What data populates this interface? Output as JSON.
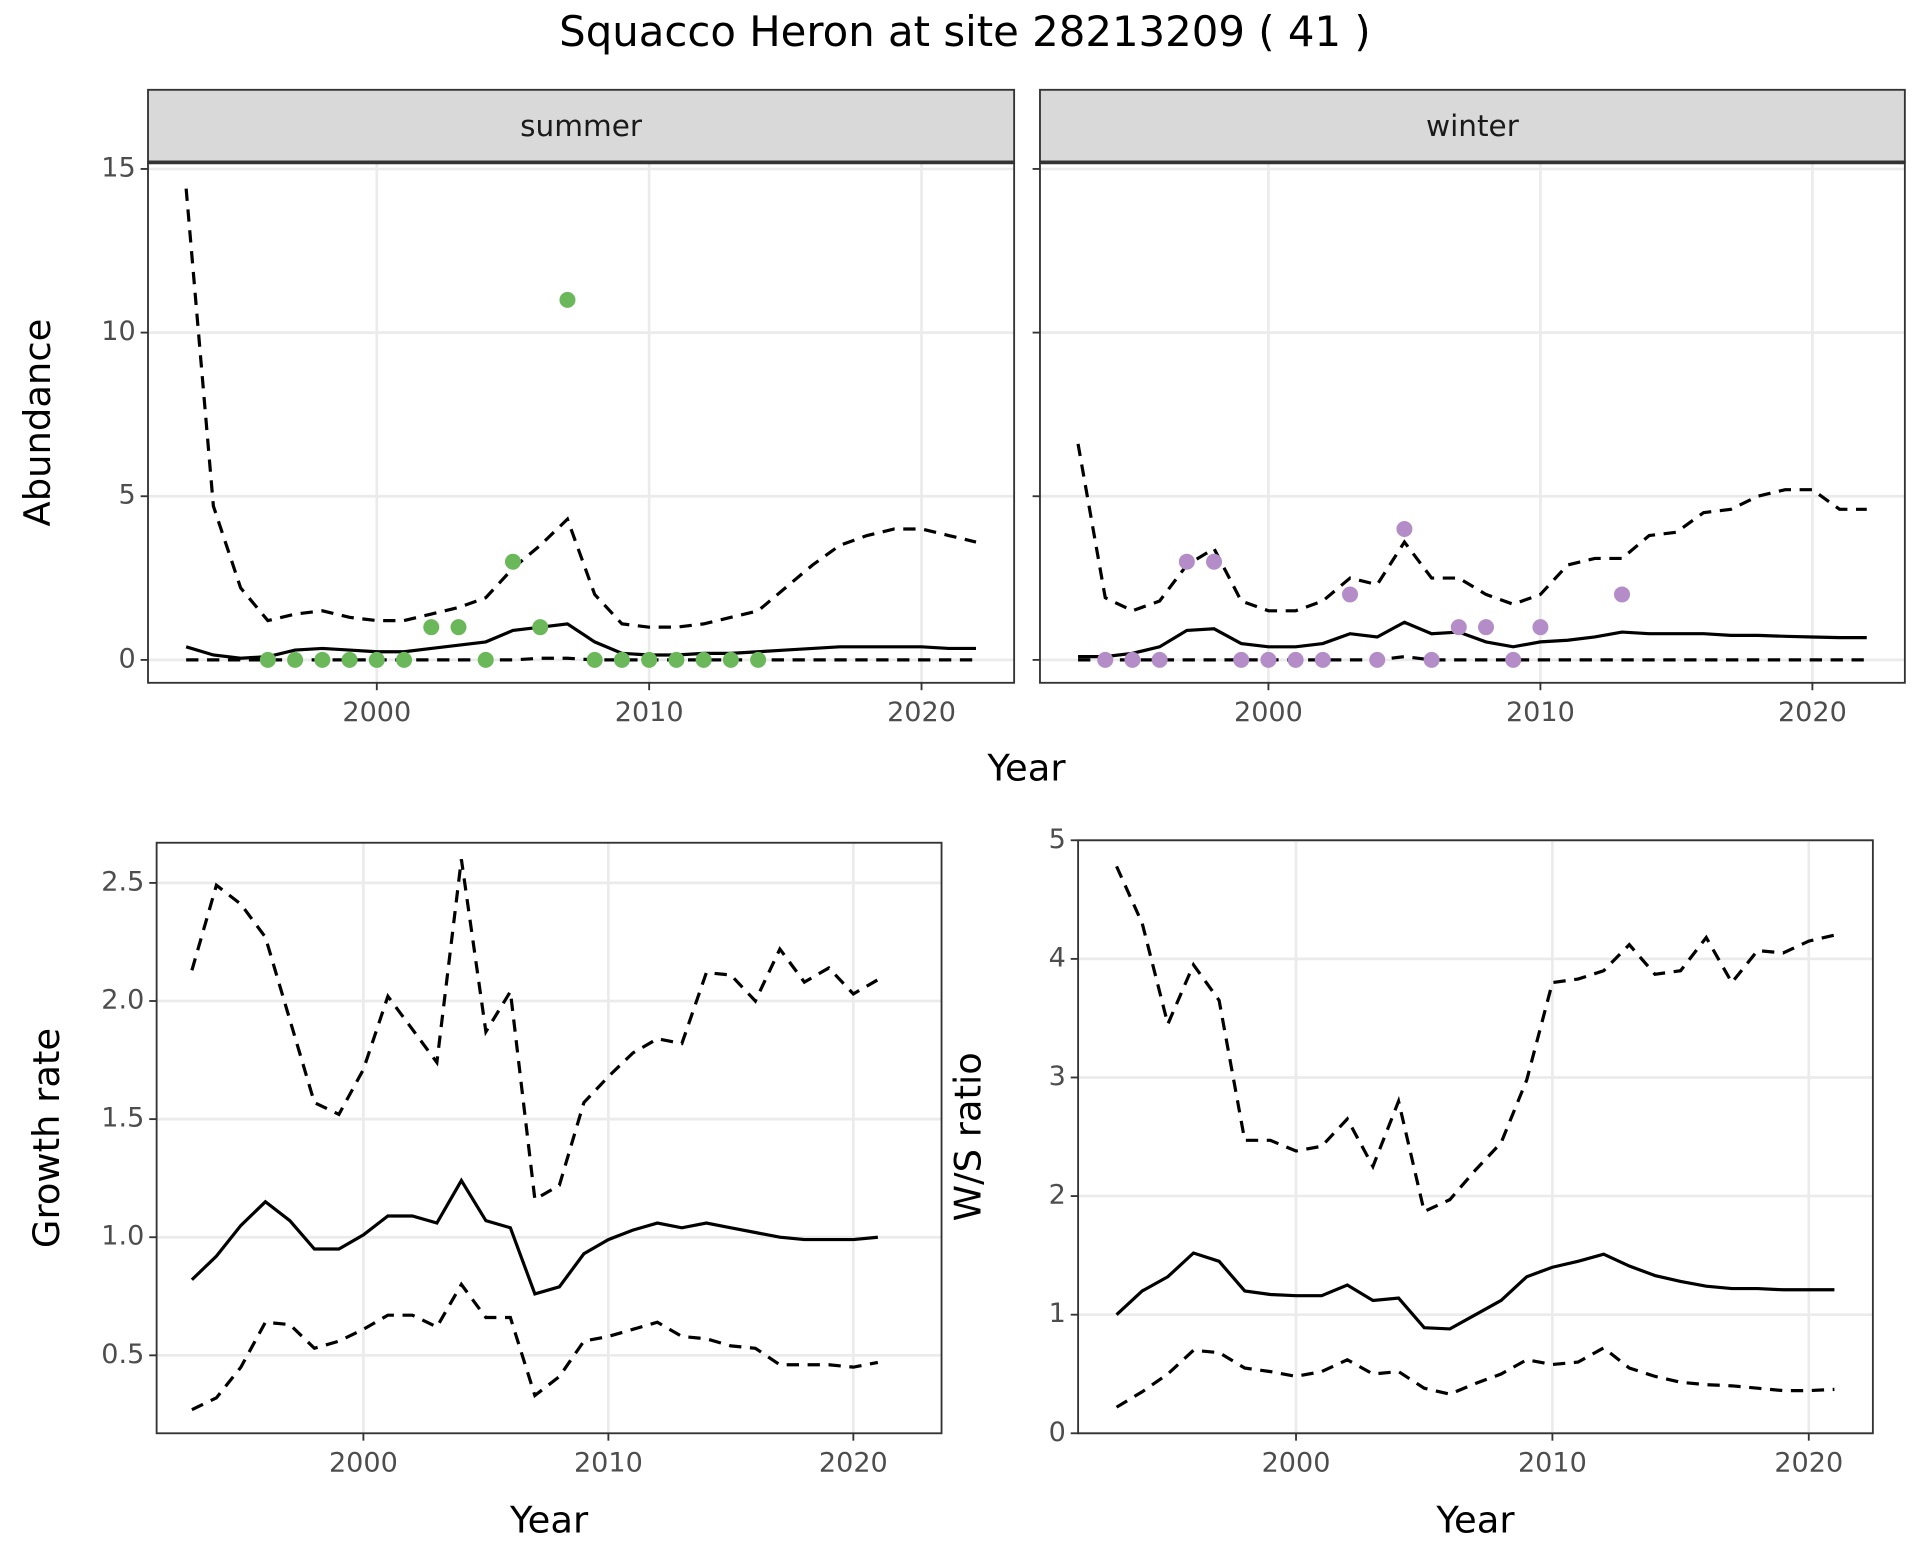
{
  "title": "Squacco Heron at site 28213209 ( 41 )",
  "xlabel": "Year",
  "chart_data": [
    {
      "type": "line",
      "strip": "summer",
      "ylabel": "Abundance",
      "xlim": [
        1991.6,
        2023.4
      ],
      "ylim": [
        -0.7,
        15.2
      ],
      "xticks": [
        2000,
        2010,
        2020
      ],
      "yticks": [
        0,
        5,
        10,
        15
      ],
      "grid": true,
      "x": [
        1993,
        1994,
        1995,
        1996,
        1997,
        1998,
        1999,
        2000,
        2001,
        2002,
        2003,
        2004,
        2005,
        2006,
        2007,
        2008,
        2009,
        2010,
        2011,
        2012,
        2013,
        2014,
        2015,
        2016,
        2017,
        2018,
        2019,
        2020,
        2021,
        2022
      ],
      "series": [
        {
          "color": "#000000",
          "dash": true,
          "values": [
            14.4,
            4.7,
            2.2,
            1.2,
            1.4,
            1.5,
            1.3,
            1.2,
            1.2,
            1.4,
            1.6,
            1.9,
            2.8,
            3.5,
            4.3,
            2.0,
            1.1,
            1.0,
            1.0,
            1.1,
            1.3,
            1.5,
            2.2,
            2.9,
            3.5,
            3.8,
            4.0,
            4.0,
            3.8,
            3.6
          ]
        },
        {
          "color": "#000000",
          "dash": false,
          "values": [
            0.4,
            0.15,
            0.05,
            0.1,
            0.3,
            0.35,
            0.3,
            0.25,
            0.25,
            0.35,
            0.45,
            0.55,
            0.9,
            1.0,
            1.1,
            0.55,
            0.2,
            0.15,
            0.15,
            0.2,
            0.2,
            0.25,
            0.3,
            0.35,
            0.4,
            0.4,
            0.4,
            0.4,
            0.35,
            0.35
          ]
        },
        {
          "color": "#000000",
          "dash": true,
          "values": [
            0,
            0,
            0,
            0,
            0,
            0,
            0,
            0,
            0,
            0,
            0,
            0,
            0,
            0.05,
            0.05,
            0,
            0,
            0,
            0,
            0,
            0,
            0,
            0,
            0,
            0,
            0,
            0,
            0,
            0,
            0
          ]
        }
      ],
      "points": {
        "color": "#6ab85a",
        "x": [
          1996,
          1997,
          1998,
          1999,
          2000,
          2001,
          2002,
          2003,
          2004,
          2005,
          2006,
          2007,
          2008,
          2009,
          2010,
          2011,
          2012,
          2013,
          2014
        ],
        "values": [
          0,
          0,
          0,
          0,
          0,
          0,
          1,
          1,
          0,
          3,
          1,
          11,
          0,
          0,
          0,
          0,
          0,
          0,
          0
        ]
      }
    },
    {
      "type": "line",
      "strip": "winter",
      "ytick_labels": false,
      "xlim": [
        1991.6,
        2023.4
      ],
      "ylim": [
        -0.7,
        15.2
      ],
      "xticks": [
        2000,
        2010,
        2020
      ],
      "yticks": [
        0,
        5,
        10,
        15
      ],
      "grid": true,
      "x": [
        1993,
        1994,
        1995,
        1996,
        1997,
        1998,
        1999,
        2000,
        2001,
        2002,
        2003,
        2004,
        2005,
        2006,
        2007,
        2008,
        2009,
        2010,
        2011,
        2012,
        2013,
        2014,
        2015,
        2016,
        2017,
        2018,
        2019,
        2020,
        2021,
        2022
      ],
      "series": [
        {
          "color": "#000000",
          "dash": true,
          "values": [
            6.6,
            1.9,
            1.5,
            1.8,
            2.9,
            3.4,
            1.8,
            1.5,
            1.5,
            1.8,
            2.5,
            2.3,
            3.6,
            2.5,
            2.5,
            2.0,
            1.7,
            2.0,
            2.9,
            3.1,
            3.1,
            3.8,
            3.9,
            4.5,
            4.6,
            5.0,
            5.2,
            5.2,
            4.6,
            4.6
          ]
        },
        {
          "color": "#000000",
          "dash": false,
          "values": [
            0.1,
            0.1,
            0.2,
            0.4,
            0.9,
            0.95,
            0.5,
            0.4,
            0.4,
            0.5,
            0.8,
            0.7,
            1.15,
            0.8,
            0.85,
            0.55,
            0.4,
            0.55,
            0.6,
            0.7,
            0.85,
            0.8,
            0.8,
            0.8,
            0.75,
            0.75,
            0.72,
            0.7,
            0.68,
            0.68
          ]
        },
        {
          "color": "#000000",
          "dash": true,
          "values": [
            0,
            0,
            0,
            0,
            0,
            0,
            0,
            0,
            0,
            0,
            0,
            0,
            0.1,
            0,
            0,
            0,
            0,
            0,
            0,
            0,
            0,
            0,
            0,
            0,
            0,
            0,
            0,
            0,
            0,
            0
          ]
        }
      ],
      "points": {
        "color": "#b48cc8",
        "x": [
          1994,
          1995,
          1996,
          1997,
          1998,
          1999,
          2000,
          2001,
          2002,
          2003,
          2004,
          2005,
          2006,
          2007,
          2008,
          2009,
          2010,
          2013
        ],
        "values": [
          0,
          0,
          0,
          3,
          3,
          0,
          0,
          0,
          0,
          2,
          0,
          4,
          0,
          1,
          1,
          0,
          1,
          2
        ]
      }
    },
    {
      "type": "line",
      "xlabel": "Year",
      "ylabel": "Growth rate",
      "xlim": [
        1991.56,
        2023.6
      ],
      "ylim": [
        0.17,
        2.67
      ],
      "xticks": [
        2000,
        2010,
        2020
      ],
      "yticks": [
        0.5,
        {
          "value": 1,
          "label": "1.0"
        },
        1.5,
        {
          "value": 2,
          "label": "2.0"
        },
        2.5
      ],
      "grid": true,
      "x": [
        1993,
        1994,
        1995,
        1996,
        1997,
        1998,
        1999,
        2000,
        2001,
        2002,
        2003,
        2004,
        2005,
        2006,
        2007,
        2008,
        2009,
        2010,
        2011,
        2012,
        2013,
        2014,
        2015,
        2016,
        2017,
        2018,
        2019,
        2020,
        2021
      ],
      "series": [
        {
          "color": "#000000",
          "dash": true,
          "values": [
            2.13,
            2.49,
            2.41,
            2.27,
            1.92,
            1.57,
            1.52,
            1.71,
            2.02,
            1.88,
            1.74,
            2.6,
            1.87,
            2.04,
            1.16,
            1.22,
            1.57,
            1.68,
            1.78,
            1.84,
            1.82,
            2.12,
            2.11,
            2.0,
            2.22,
            2.08,
            2.14,
            2.03,
            2.09
          ]
        },
        {
          "color": "#000000",
          "dash": false,
          "values": [
            0.82,
            0.92,
            1.05,
            1.15,
            1.07,
            0.95,
            0.95,
            1.01,
            1.09,
            1.09,
            1.06,
            1.24,
            1.07,
            1.04,
            0.76,
            0.79,
            0.93,
            0.99,
            1.03,
            1.06,
            1.04,
            1.06,
            1.04,
            1.02,
            1.0,
            0.99,
            0.99,
            0.99,
            1.0
          ]
        },
        {
          "color": "#000000",
          "dash": true,
          "values": [
            0.27,
            0.32,
            0.45,
            0.64,
            0.63,
            0.53,
            0.56,
            0.61,
            0.67,
            0.67,
            0.62,
            0.8,
            0.66,
            0.66,
            0.33,
            0.41,
            0.56,
            0.58,
            0.61,
            0.64,
            0.58,
            0.57,
            0.54,
            0.53,
            0.46,
            0.46,
            0.46,
            0.45,
            0.47
          ]
        }
      ]
    },
    {
      "type": "line",
      "xlabel": "Year",
      "ylabel": "W/S ratio",
      "xlim": [
        1991.5,
        2022.5
      ],
      "ylim": [
        0,
        5
      ],
      "xticks": [
        2000,
        2010,
        2020
      ],
      "yticks": [
        0,
        1,
        2,
        3,
        4,
        5
      ],
      "grid": true,
      "x": [
        1993,
        1994,
        1995,
        1996,
        1997,
        1998,
        1999,
        2000,
        2001,
        2002,
        2003,
        2004,
        2005,
        2006,
        2007,
        2008,
        2009,
        2010,
        2011,
        2012,
        2013,
        2014,
        2015,
        2016,
        2017,
        2018,
        2019,
        2020,
        2021
      ],
      "series": [
        {
          "color": "#000000",
          "dash": true,
          "values": [
            4.78,
            4.3,
            3.45,
            3.95,
            3.65,
            2.47,
            2.47,
            2.38,
            2.42,
            2.65,
            2.25,
            2.8,
            1.87,
            1.97,
            2.22,
            2.45,
            2.98,
            3.8,
            3.83,
            3.9,
            4.12,
            3.87,
            3.9,
            4.18,
            3.8,
            4.07,
            4.05,
            4.15,
            4.2
          ]
        },
        {
          "color": "#000000",
          "dash": false,
          "values": [
            1.0,
            1.2,
            1.32,
            1.52,
            1.45,
            1.2,
            1.17,
            1.16,
            1.16,
            1.25,
            1.12,
            1.14,
            0.89,
            0.88,
            1.0,
            1.12,
            1.32,
            1.4,
            1.45,
            1.51,
            1.41,
            1.33,
            1.28,
            1.24,
            1.22,
            1.22,
            1.21,
            1.21,
            1.21
          ]
        },
        {
          "color": "#000000",
          "dash": true,
          "values": [
            0.22,
            0.35,
            0.5,
            0.7,
            0.68,
            0.55,
            0.52,
            0.48,
            0.52,
            0.62,
            0.5,
            0.52,
            0.38,
            0.33,
            0.42,
            0.5,
            0.62,
            0.58,
            0.6,
            0.72,
            0.55,
            0.48,
            0.43,
            0.41,
            0.4,
            0.38,
            0.36,
            0.36,
            0.37
          ]
        }
      ]
    }
  ]
}
